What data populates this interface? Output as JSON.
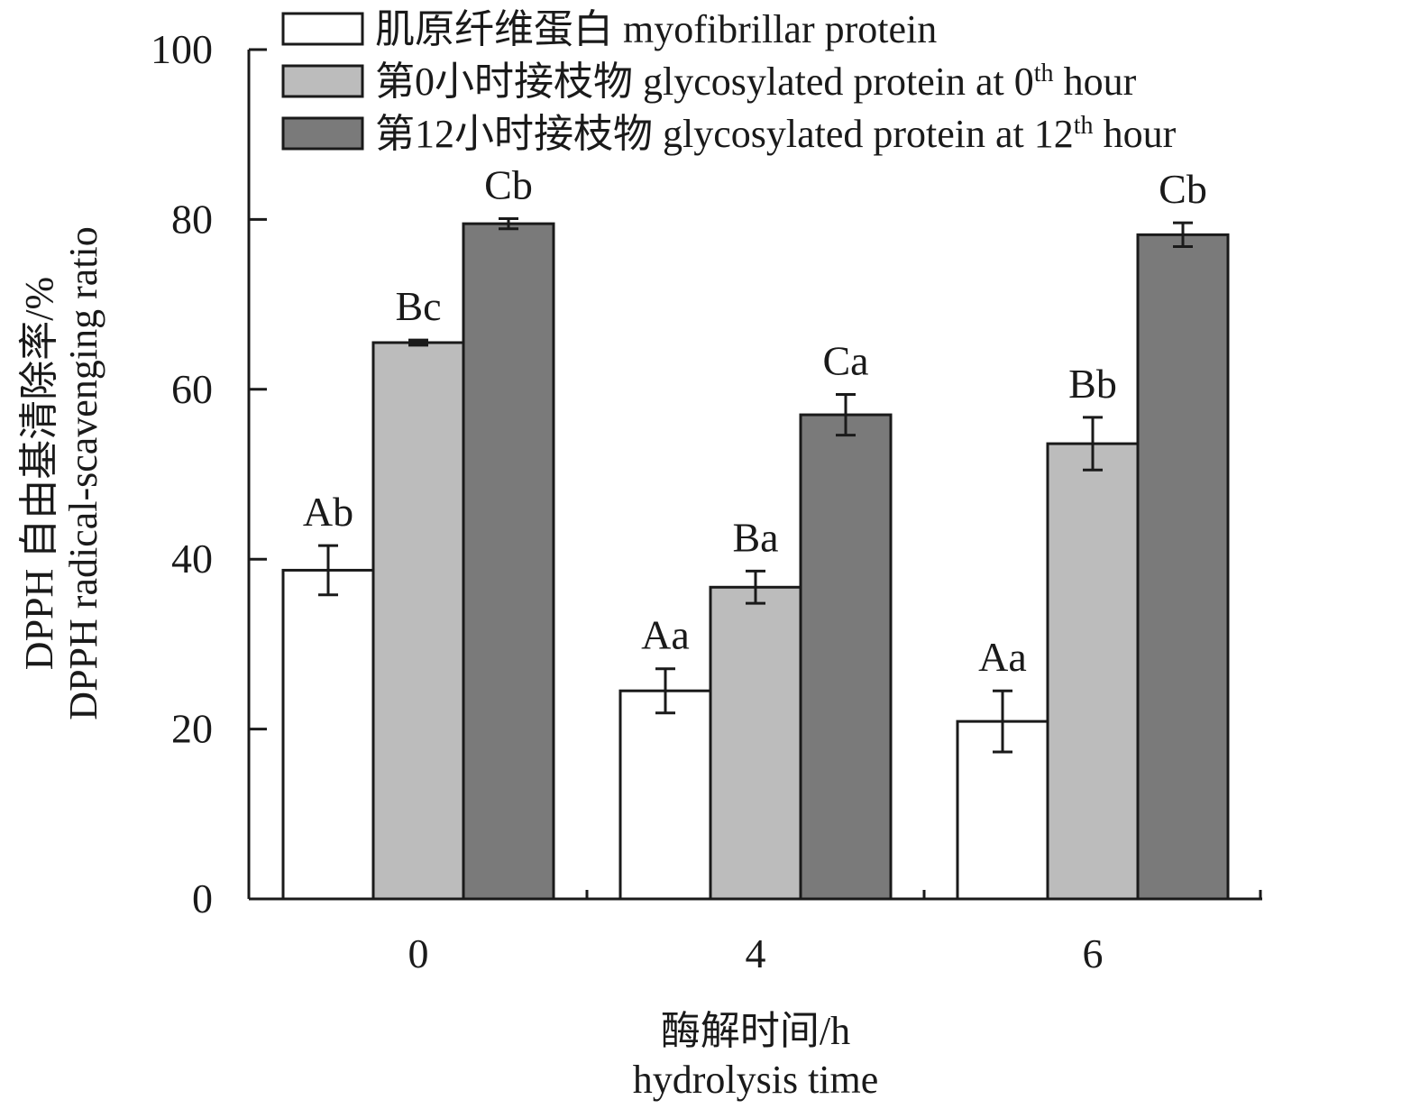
{
  "chart_data": {
    "type": "bar",
    "categories": [
      "0",
      "4",
      "6"
    ],
    "series": [
      {
        "name": "肌原纤维蛋白 myofibrillar protein",
        "color": "#ffffff",
        "values": [
          38.7,
          24.5,
          20.9
        ],
        "errors": [
          2.9,
          2.6,
          3.6
        ],
        "labels": [
          "Ab",
          "Aa",
          "Aa"
        ]
      },
      {
        "name": "第0小时接枝物 glycosylated protein at 0th hour",
        "name_parts": {
          "pre": "第0小时接枝物 glycosylated protein at 0",
          "sup": "th",
          "post": " hour"
        },
        "color": "#bcbcbc",
        "values": [
          65.5,
          36.7,
          53.6
        ],
        "errors": [
          0.3,
          1.9,
          3.1
        ],
        "labels": [
          "Bc",
          "Ba",
          "Bb"
        ]
      },
      {
        "name": "第12小时接枝物 glycosylated protein at 12th hour",
        "name_parts": {
          "pre": "第12小时接枝物 glycosylated protein at 12",
          "sup": "th",
          "post": " hour"
        },
        "color": "#7a7a7a",
        "values": [
          79.5,
          57.0,
          78.2
        ],
        "errors": [
          0.6,
          2.4,
          1.4
        ],
        "labels": [
          "Cb",
          "Ca",
          "Cb"
        ]
      }
    ],
    "ylim": [
      0,
      100
    ],
    "yticks": [
      "0",
      "20",
      "40",
      "60",
      "80",
      "100"
    ],
    "ylabel_line1": "DPPH 自由基清除率/%",
    "ylabel_line2": "DPPH radical-scavenging ratio",
    "xlabel_line1": "酶解时间/h",
    "xlabel_line2": "hydrolysis time",
    "grid": false,
    "legend_position": "top"
  }
}
